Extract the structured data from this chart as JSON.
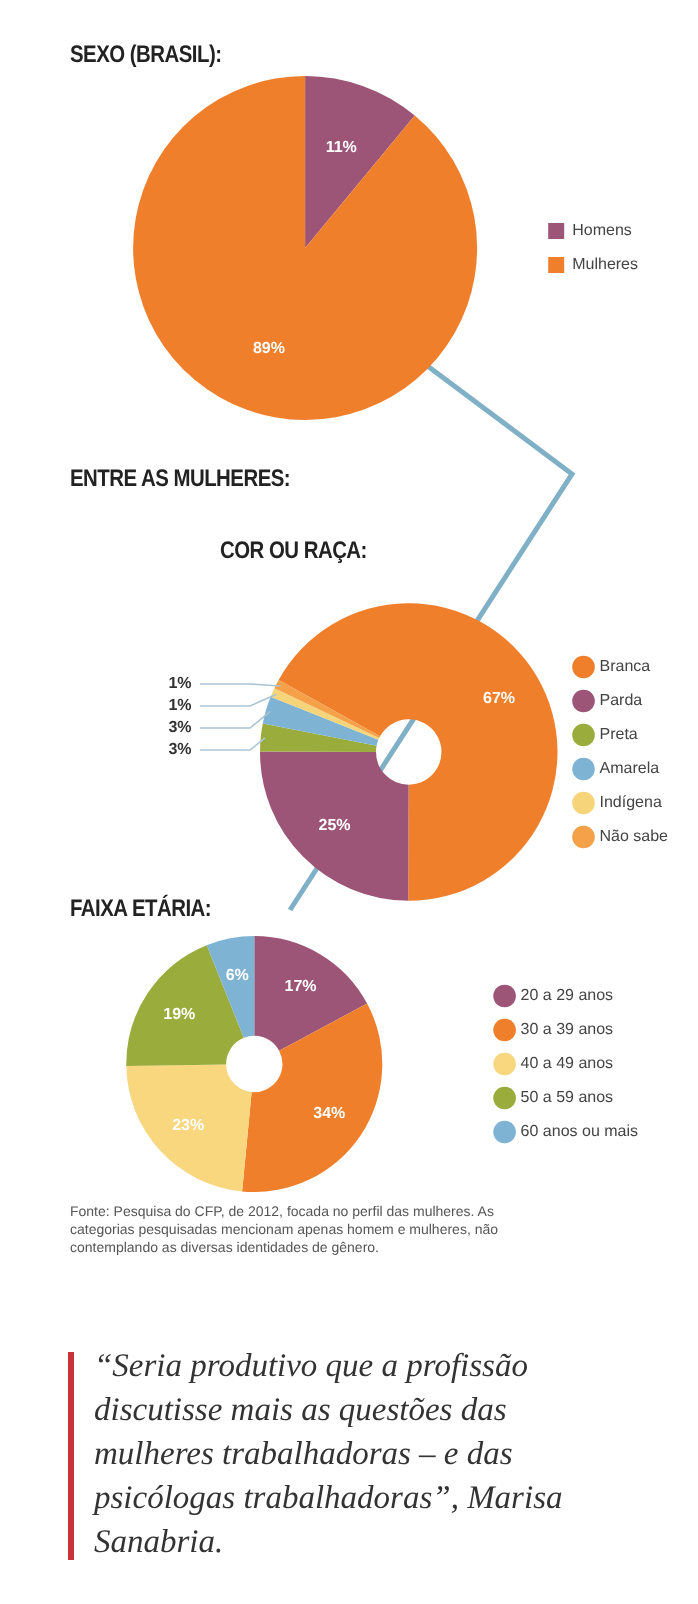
{
  "chart_data": [
    {
      "type": "pie",
      "title": "SEXO (BRASIL):",
      "categories": [
        "Homens",
        "Mulheres"
      ],
      "values": [
        11,
        89
      ],
      "value_labels": [
        "11%",
        "89%"
      ],
      "colors": [
        "#9c5577",
        "#f07f2c"
      ],
      "legend": "right"
    },
    {
      "type": "donut",
      "title": "COR OU RAÇA:",
      "annotations": [
        "ENTRE AS MULHERES:"
      ],
      "categories": [
        "Branca",
        "Parda",
        "Preta",
        "Amarela",
        "Indígena",
        "Não sabe"
      ],
      "values": [
        67,
        25,
        3,
        3,
        1,
        1
      ],
      "value_labels": [
        "67%",
        "25%",
        "3%",
        "3%",
        "1%",
        "1%"
      ],
      "colors": [
        "#f07f2c",
        "#9c5577",
        "#9aac3c",
        "#7fb3d3",
        "#f6d57a",
        "#f4a14a"
      ],
      "legend": "right"
    },
    {
      "type": "donut",
      "title": "FAIXA ETÁRIA:",
      "annotations": [
        "Fonte: Pesquisa do CFP, de 2012, focada no perfil das mulheres. As categorias pesquisadas mencionam apenas homem e mulheres, não contemplando as diversas identidades de gênero."
      ],
      "categories": [
        "20 a 29 anos",
        "30 a 39 anos",
        "40 a 49 anos",
        "50 a 59 anos",
        "60 anos ou mais"
      ],
      "values": [
        17,
        34,
        23,
        19,
        6
      ],
      "value_labels": [
        "17%",
        "34%",
        "23%",
        "19%",
        "6%"
      ],
      "colors": [
        "#9c5577",
        "#f07f2c",
        "#f8d77e",
        "#9aac3c",
        "#7fb3d3"
      ],
      "legend": "right"
    },
    {
      "type": "other",
      "annotations": [
        "“Seria produtivo que a profissão discutisse mais as questões das mulheres trabalhadoras – e das psicólogas trabalhadoras”, Marisa Sanabria."
      ]
    }
  ]
}
